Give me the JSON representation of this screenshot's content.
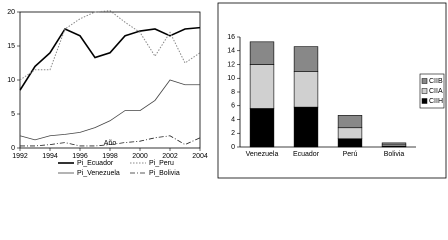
{
  "chart_data": [
    {
      "type": "line",
      "xlabel": "Año",
      "x": [
        1992,
        1993,
        1994,
        1995,
        1996,
        1997,
        1998,
        1999,
        2000,
        2001,
        2002,
        2003,
        2004
      ],
      "xlim": [
        1992,
        2004
      ],
      "xticks": [
        1992,
        1994,
        1996,
        1998,
        2000,
        2002,
        2004
      ],
      "ylim": [
        0,
        20
      ],
      "yticks": [
        0,
        5,
        10,
        15,
        20
      ],
      "series": [
        {
          "name": "Pi_Ecuador",
          "color": "#000000",
          "linestyle": "solid",
          "linewidth": 1.6,
          "values": [
            8.5,
            12,
            14,
            17.5,
            16.5,
            13.3,
            14,
            16.5,
            17.2,
            17.5,
            16.5,
            17.5,
            17.7
          ]
        },
        {
          "name": "Pi_Peru",
          "color": "#888888",
          "linestyle": "dotted",
          "linewidth": 1,
          "values": [
            10,
            11.5,
            11.5,
            17.5,
            19,
            20,
            20.2,
            18.5,
            17,
            13.5,
            17,
            12.5,
            14
          ]
        },
        {
          "name": "Pi_Venezuela",
          "color": "#444444",
          "linestyle": "solid",
          "linewidth": 0.8,
          "values": [
            1.8,
            1.2,
            1.8,
            2,
            2.3,
            3,
            4,
            5.5,
            5.5,
            7,
            10,
            9.3,
            9.3
          ]
        },
        {
          "name": "Pi_Bolivia",
          "color": "#222222",
          "linestyle": "dashdot",
          "linewidth": 0.8,
          "values": [
            0.3,
            0.3,
            0.5,
            0.8,
            0.3,
            0.3,
            0.5,
            0.8,
            1,
            1.5,
            1.8,
            0.5,
            1.5
          ]
        }
      ]
    },
    {
      "type": "bar",
      "stacked": true,
      "categories": [
        "Venezuela",
        "Ecuador",
        "Perú",
        "Bolivia"
      ],
      "ylim": [
        0,
        16
      ],
      "yticks": [
        0,
        2,
        4,
        6,
        8,
        10,
        12,
        14,
        16
      ],
      "series": [
        {
          "name": "CIIH",
          "color": "#000000",
          "values": [
            5.6,
            5.8,
            1.2,
            0.1
          ]
        },
        {
          "name": "CIIA",
          "color": "#d0d0d0",
          "values": [
            6.4,
            5.2,
            1.6,
            0.2
          ]
        },
        {
          "name": "CIIB",
          "color": "#888888",
          "values": [
            3.3,
            3.6,
            1.8,
            0.3
          ]
        }
      ]
    }
  ]
}
